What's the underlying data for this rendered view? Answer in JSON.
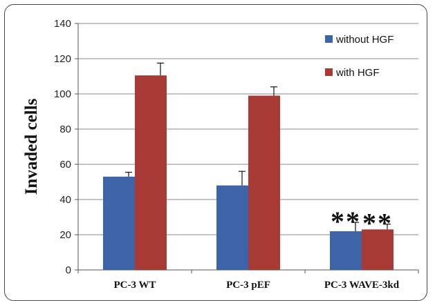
{
  "chart_data": {
    "type": "bar",
    "title": "",
    "xlabel": "",
    "ylabel": "Invaded cells",
    "ylim": [
      0,
      140
    ],
    "yticks": [
      0,
      20,
      40,
      60,
      80,
      100,
      120,
      140
    ],
    "categories": [
      "PC-3 WT",
      "PC-3 pEF",
      "PC-3 WAVE-3kd"
    ],
    "series": [
      {
        "name": "without HGF",
        "color": "#3d64a8",
        "values": [
          53,
          48,
          22
        ],
        "errors": [
          2.5,
          8,
          5
        ]
      },
      {
        "name": "with HGF",
        "color": "#a83a36",
        "values": [
          110.5,
          99,
          23
        ],
        "errors": [
          7,
          5,
          3
        ]
      }
    ],
    "annotations": [
      "**",
      "**"
    ],
    "grid": true,
    "legend_position": "top-right"
  }
}
